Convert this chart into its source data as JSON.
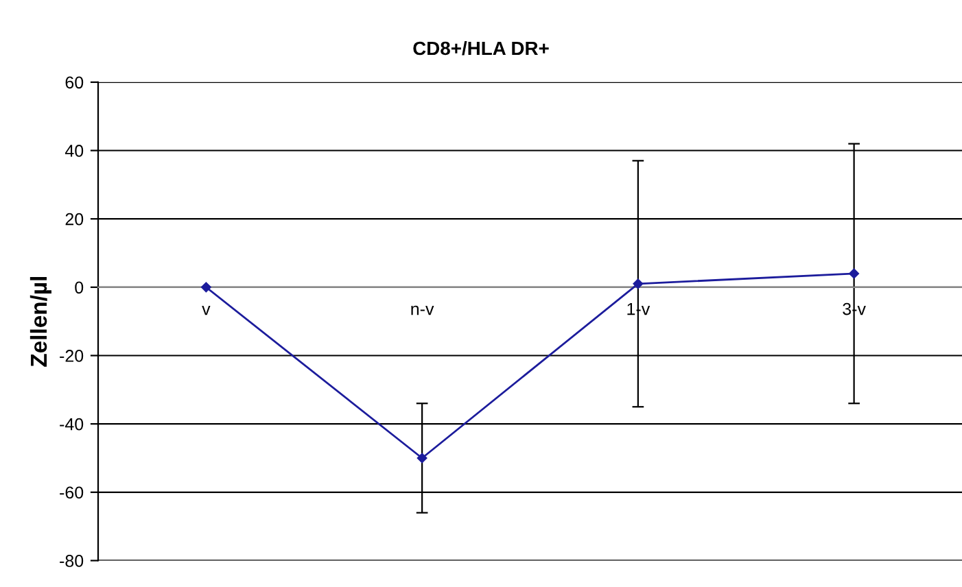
{
  "chart_data": {
    "type": "line",
    "title": "CD8+/HLA DR+",
    "ylabel": "Zellen/µl",
    "categories": [
      "v",
      "n-v",
      "1-v",
      "3-v"
    ],
    "series": [
      {
        "color": "#1c1c9c",
        "values": [
          0,
          -50,
          1,
          4
        ],
        "errors": [
          null,
          16,
          36,
          38
        ]
      }
    ],
    "ylim": [
      -80,
      60
    ],
    "yticks": [
      -80,
      -60,
      -40,
      -20,
      0,
      20,
      40,
      60
    ],
    "grid": "y",
    "marker": "diamond",
    "line_style": "solid"
  }
}
